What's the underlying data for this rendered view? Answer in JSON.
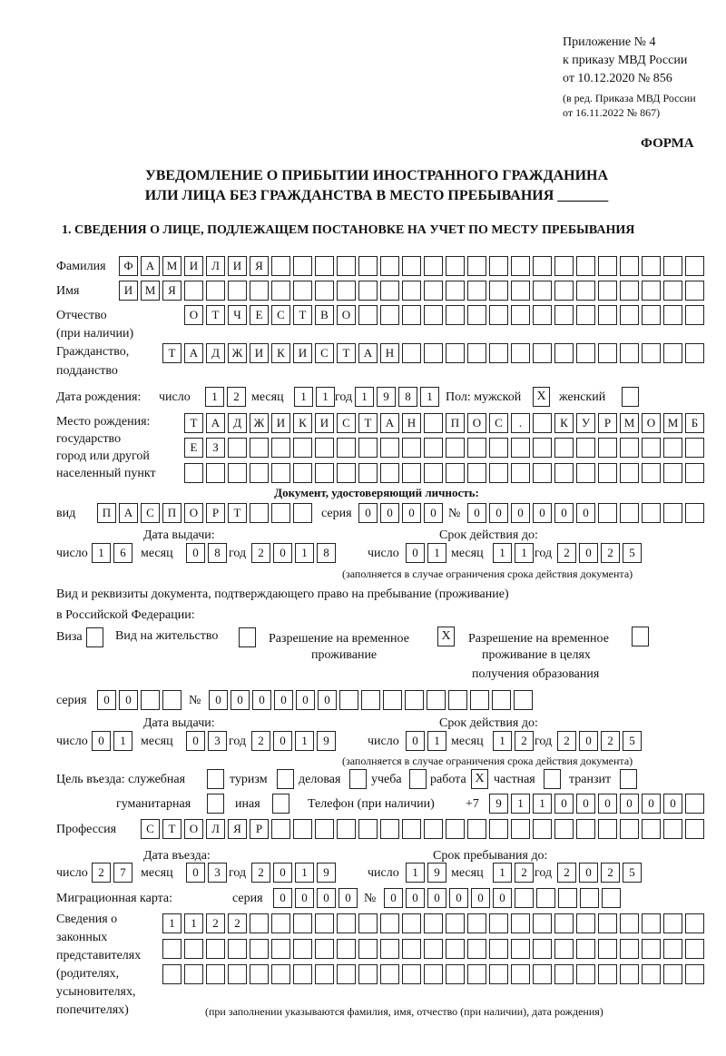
{
  "header": {
    "line1": "Приложение № 4",
    "line2": "к приказу МВД России",
    "line3": "от 10.12.2020 № 856",
    "line4": "(в ред. Приказа МВД России",
    "line5": "от 16.11.2022 № 867)",
    "form_label": "ФОРМА",
    "title1": "УВЕДОМЛЕНИЕ О ПРИБЫТИИ ИНОСТРАННОГО ГРАЖДАНИНА",
    "title2": "ИЛИ ЛИЦА БЕЗ ГРАЖДАНСТВА В МЕСТО ПРЕБЫВАНИЯ _______",
    "section1": "1. СВЕДЕНИЯ О ЛИЦЕ, ПОДЛЕЖАЩЕМ ПОСТАНОВКЕ НА УЧЕТ ПО МЕСТУ ПРЕБЫВАНИЯ"
  },
  "labels": {
    "surname": "Фамилия",
    "name": "Имя",
    "patronymic": "Отчество",
    "patronymic_note": "(при наличии)",
    "citizenship": "Гражданство,",
    "citizenship2": "подданство",
    "birth_date": "Дата рождения:",
    "day": "число",
    "month": "месяц",
    "year": "год",
    "sex": "Пол: мужской",
    "female": "женский",
    "birthplace1": "Место рождения:",
    "birthplace2": "государство",
    "birthplace3": "город или другой",
    "birthplace4": "населенный пункт",
    "id_doc": "Документ, удостоверяющий личность:",
    "kind": "вид",
    "series": "серия",
    "number": "№",
    "issue_date": "Дата выдачи:",
    "valid_until": "Срок действия до:",
    "validity_note": "(заполняется в случае ограничения срока действия документа)",
    "right_doc1": "Вид и реквизиты документа, подтверждающего право на пребывание (проживание)",
    "right_doc2": "в Российской Федерации:",
    "visa": "Виза",
    "residence": "Вид на жительство",
    "temp1": "Разрешение на временное",
    "temp2": "проживание",
    "edu1": "Разрешение на временное",
    "edu2": "проживание в целях",
    "edu3": "получения образования",
    "purpose": "Цель въезда: служебная",
    "tourism": "туризм",
    "business": "деловая",
    "study": "учеба",
    "work": "работа",
    "private": "частная",
    "transit": "транзит",
    "humanitarian": "гуманитарная",
    "other": "иная",
    "phone": "Телефон (при наличии)",
    "phone_prefix": "+7",
    "profession": "Профессия",
    "entry_date": "Дата въезда:",
    "stay_until": "Срок пребывания до:",
    "migration_card": "Миграционная карта:",
    "reps1": "Сведения о",
    "reps2": "законных",
    "reps3": "представителях",
    "reps4": "(родителях,",
    "reps5": "усыновителях,",
    "reps6": "попечителях)",
    "reps_note": "(при заполнении указываются фамилия, имя, отчество (при наличии), дата рождения)"
  },
  "person": {
    "surname": "ФАМИЛИЯ",
    "name": "ИМЯ",
    "patronymic": "ОТЧЕСТВО",
    "citizenship": "ТАДЖИКИСТАН",
    "birth_day": "12",
    "birth_month": "11",
    "birth_year": "1981",
    "sex_male": "X",
    "sex_female": "",
    "birthplace_line1": "ТАДЖИКИСТАН ПОС. КУРМОМБ",
    "birthplace_line2": "ЕЗ",
    "birthplace_line3": ""
  },
  "id_document": {
    "kind": "ПАСПОРТ",
    "series": "0000",
    "number": "000000",
    "issue_day": "16",
    "issue_month": "08",
    "issue_year": "2018",
    "valid_day": "01",
    "valid_month": "11",
    "valid_year": "2025"
  },
  "right_document": {
    "visa": "",
    "residence_permit": "",
    "temporary_residence": "X",
    "temporary_residence_education": "",
    "series": "00",
    "number": "000000",
    "issue_day": "01",
    "issue_month": "03",
    "issue_year": "2019",
    "valid_day": "01",
    "valid_month": "12",
    "valid_year": "2025"
  },
  "purpose": {
    "official": "",
    "tourism": "",
    "business": "",
    "study": "",
    "work": "X",
    "private": "",
    "transit": "",
    "humanitarian": "",
    "other": ""
  },
  "phone": "911000000",
  "profession": "СТОЛЯР",
  "entry": {
    "day": "27",
    "month": "03",
    "year": "2019"
  },
  "stay_until": {
    "day": "19",
    "month": "12",
    "year": "2025"
  },
  "migration_card": {
    "series": "0000",
    "number": "000000"
  },
  "representatives": {
    "line1": "1122",
    "line2": "",
    "line3": ""
  }
}
